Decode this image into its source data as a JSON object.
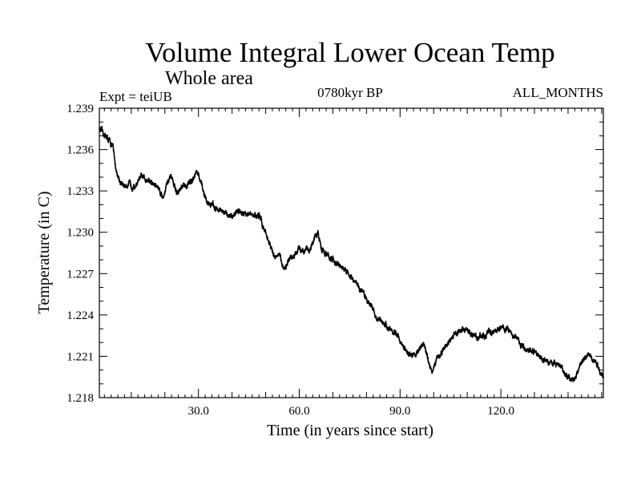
{
  "chart_data": {
    "type": "line",
    "title": "Volume Integral Lower Ocean Temp",
    "subtitle": "Whole area",
    "annotations": {
      "left": "Expt = teiUB",
      "center": "0780kyr BP",
      "right": "ALL_MONTHS"
    },
    "xlabel": "Time (in years since start)",
    "ylabel": "Temperature (in C)",
    "xlim": [
      0.5,
      150.5
    ],
    "ylim": [
      1.218,
      1.239
    ],
    "xticks": [
      30,
      60,
      90,
      120
    ],
    "xtick_labels": [
      "30.0",
      "60.0",
      "90.0",
      "120.0"
    ],
    "yticks": [
      1.218,
      1.221,
      1.224,
      1.227,
      1.23,
      1.233,
      1.236,
      1.239
    ],
    "ytick_labels": [
      "1.218",
      "1.221",
      "1.224",
      "1.227",
      "1.230",
      "1.233",
      "1.236",
      "1.239"
    ],
    "grid": false,
    "series": [
      {
        "name": "Volume Integral Lower Ocean Temp",
        "color": "#000000",
        "anchors_x": [
          0.5,
          1.5,
          3,
          4.5,
          5.5,
          6.5,
          7.5,
          9,
          11,
          13,
          15,
          16.5,
          18,
          19.5,
          20.5,
          22,
          23.5,
          25,
          27,
          28.5,
          29.5,
          31,
          32.5,
          34,
          36,
          38,
          40,
          42,
          44,
          46,
          48,
          50,
          51.5,
          52.5,
          54,
          55.5,
          57,
          58.5,
          60,
          61.5,
          63,
          64.5,
          65.5,
          66.5,
          67.5,
          69,
          71,
          73,
          75,
          77,
          79,
          80.5,
          82,
          83.5,
          85,
          86.5,
          88,
          89.5,
          91,
          93,
          95,
          97,
          98.5,
          99.5,
          101,
          103,
          105,
          107,
          109,
          110.5,
          112,
          114,
          116,
          118,
          120,
          122,
          124,
          126,
          128,
          130,
          132,
          134,
          136,
          138,
          140,
          141.5,
          143,
          144.5,
          146,
          148,
          149.5,
          150.5
        ],
        "anchors_y": [
          1.2375,
          1.2372,
          1.2368,
          1.2362,
          1.2345,
          1.2338,
          1.2333,
          1.2335,
          1.2333,
          1.234,
          1.2338,
          1.2335,
          1.2333,
          1.2325,
          1.2335,
          1.234,
          1.2328,
          1.2332,
          1.2335,
          1.234,
          1.2345,
          1.2333,
          1.2322,
          1.232,
          1.2316,
          1.2313,
          1.2312,
          1.2316,
          1.2314,
          1.2312,
          1.2312,
          1.23,
          1.2289,
          1.2283,
          1.2283,
          1.2274,
          1.2279,
          1.2282,
          1.2288,
          1.2288,
          1.2287,
          1.2295,
          1.2299,
          1.229,
          1.2285,
          1.2282,
          1.2277,
          1.2274,
          1.2268,
          1.2262,
          1.2256,
          1.225,
          1.2244,
          1.2236,
          1.2235,
          1.223,
          1.2228,
          1.2224,
          1.2216,
          1.2211,
          1.2212,
          1.222,
          1.2205,
          1.22,
          1.2208,
          1.2215,
          1.2222,
          1.2228,
          1.223,
          1.2227,
          1.2225,
          1.2224,
          1.2226,
          1.2228,
          1.2231,
          1.223,
          1.2225,
          1.2218,
          1.2215,
          1.2213,
          1.2209,
          1.2206,
          1.2205,
          1.2202,
          1.2194,
          1.2193,
          1.2199,
          1.2208,
          1.2213,
          1.2207,
          1.2198,
          1.2196
        ]
      }
    ]
  }
}
